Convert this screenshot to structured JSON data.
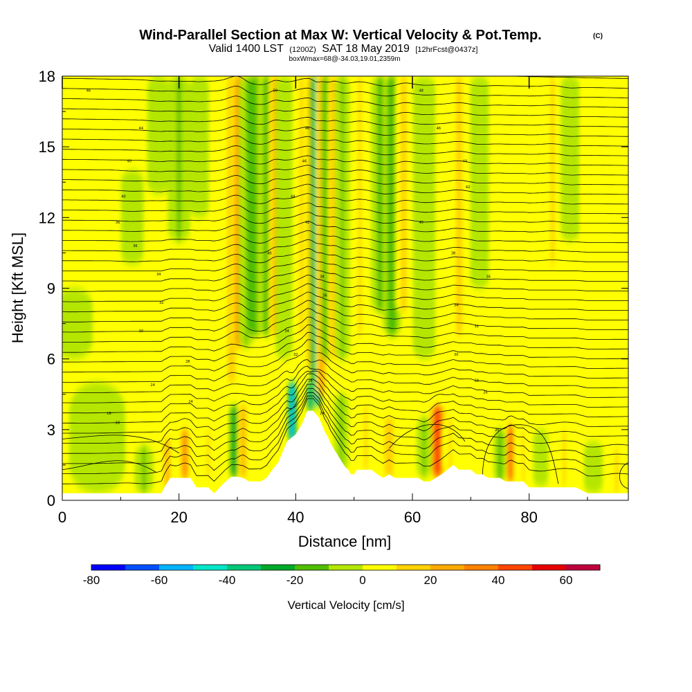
{
  "title": {
    "main": "Wind-Parallel Section at Max W: Vertical Velocity & Pot.Temp.",
    "copyright": "(C)",
    "line2_a": "Valid 1400 LST",
    "line2_b": "(1200Z)",
    "line2_c": "SAT 18 May 2019",
    "line2_d": "[12hrFcst@0437z]",
    "line3": "boxWmax=68@-34.03,19.01,2359m"
  },
  "colors": {
    "background": "#ffff00",
    "terrain": "#ffffff",
    "contour": "#000000",
    "palette": [
      "#0000ff",
      "#0050ff",
      "#00b4ff",
      "#00e6c8",
      "#00c878",
      "#00aa28",
      "#50be00",
      "#b4e600",
      "#ffff00",
      "#ffd200",
      "#ffaa00",
      "#ff8200",
      "#ff4600",
      "#e60000",
      "#be003c"
    ]
  },
  "chart_data": {
    "type": "heatmap",
    "title": "Wind-Parallel Section at Max W: Vertical Velocity & Pot.Temp.",
    "xlabel": "Distance [nm]",
    "ylabel": "Height [Kft MSL]",
    "xlim": [
      0,
      97
    ],
    "ylim": [
      0,
      18
    ],
    "x_ticks": [
      0,
      20,
      40,
      60,
      80
    ],
    "y_ticks": [
      0,
      3,
      6,
      9,
      12,
      15,
      18
    ],
    "colorbar": {
      "label": "Vertical Velocity [cm/s]",
      "min": -80,
      "max": 70,
      "step": 10,
      "tick_values": [
        -80,
        -60,
        -40,
        -20,
        0,
        20,
        40,
        60
      ]
    },
    "shaded_field": "Vertical Velocity [cm/s]",
    "contour_field": "Pot.Temp.",
    "terrain_profile": {
      "x": [
        0,
        10,
        17,
        17.5,
        18.5,
        22,
        23,
        25,
        26,
        27,
        28,
        29,
        30,
        31,
        32,
        33,
        34,
        35,
        36,
        37,
        37.5,
        38,
        38.5,
        39,
        39.5,
        40,
        40.5,
        41,
        41.5,
        42,
        43,
        44,
        44.5,
        45,
        45.5,
        46,
        46.5,
        47,
        47.5,
        48,
        48.5,
        49,
        49.5,
        50,
        50.5,
        51,
        52,
        53,
        54,
        55,
        56,
        57,
        58,
        60,
        61,
        62,
        63,
        64,
        65,
        66,
        67,
        68,
        70,
        71,
        72,
        73,
        74,
        75,
        76,
        77,
        78,
        79,
        80,
        82,
        84,
        86,
        88,
        90,
        92,
        94,
        96,
        97
      ],
      "y": [
        0.3,
        0.3,
        0.3,
        0.55,
        0.95,
        0.95,
        0.55,
        0.55,
        0.3,
        0.55,
        0.8,
        1.0,
        1.0,
        0.95,
        0.8,
        0.8,
        0.8,
        0.95,
        1.3,
        1.6,
        1.9,
        2.2,
        2.5,
        2.6,
        2.7,
        2.8,
        3.0,
        3.2,
        3.5,
        3.8,
        3.8,
        3.5,
        3.2,
        2.9,
        2.7,
        2.4,
        2.2,
        2.0,
        1.8,
        1.6,
        1.4,
        1.3,
        1.1,
        1.1,
        1.3,
        1.3,
        1.3,
        1.3,
        1.1,
        0.95,
        1.1,
        0.95,
        0.95,
        0.95,
        0.95,
        0.8,
        0.8,
        0.95,
        1.1,
        1.3,
        1.5,
        1.3,
        1.3,
        1.1,
        1.1,
        0.95,
        0.95,
        0.95,
        0.8,
        0.8,
        0.8,
        0.8,
        0.55,
        0.55,
        0.55,
        0.55,
        0.55,
        0.3,
        0.3,
        0.3,
        0.3,
        0.3
      ]
    },
    "velocity_features": [
      {
        "x": 29.0,
        "y0": 5.0,
        "y1": 18,
        "w": 0.9,
        "v": 20
      },
      {
        "x": 30.5,
        "y0": 6.5,
        "y1": 18,
        "w": 0.9,
        "v": 45
      },
      {
        "x": 31.5,
        "y0": 6.5,
        "y1": 18,
        "w": 0.8,
        "v": -12
      },
      {
        "x": 33.0,
        "y0": 7.0,
        "y1": 18,
        "w": 1.4,
        "v": -22
      },
      {
        "x": 35.0,
        "y0": 7.0,
        "y1": 18,
        "w": 1.0,
        "v": -15
      },
      {
        "x": 36.5,
        "y0": 7.0,
        "y1": 18,
        "w": 0.7,
        "v": 25
      },
      {
        "x": 38.0,
        "y0": 6.0,
        "y1": 18,
        "w": 0.9,
        "v": -10
      },
      {
        "x": 41.0,
        "y0": 7.0,
        "y1": 18,
        "w": 0.6,
        "v": 15
      },
      {
        "x": 42.7,
        "y0": 5.5,
        "y1": 18,
        "w": 0.6,
        "v": 40
      },
      {
        "x": 43.5,
        "y0": 4.0,
        "y1": 18,
        "w": 0.7,
        "v": -45
      },
      {
        "x": 44.4,
        "y0": 4.5,
        "y1": 18,
        "w": 0.6,
        "v": 30
      },
      {
        "x": 45.4,
        "y0": 6.0,
        "y1": 18,
        "w": 0.7,
        "v": -22
      },
      {
        "x": 46.6,
        "y0": 6.0,
        "y1": 18,
        "w": 0.7,
        "v": 22
      },
      {
        "x": 48.0,
        "y0": 6.0,
        "y1": 18,
        "w": 0.8,
        "v": -12
      },
      {
        "x": 51.0,
        "y0": 7.0,
        "y1": 18,
        "w": 1.0,
        "v": 12
      },
      {
        "x": 54.5,
        "y0": 8.0,
        "y1": 18,
        "w": 1.0,
        "v": -15
      },
      {
        "x": 56.5,
        "y0": 7.0,
        "y1": 18,
        "w": 1.0,
        "v": -20
      },
      {
        "x": 58.5,
        "y0": 8.0,
        "y1": 18,
        "w": 0.9,
        "v": 15
      },
      {
        "x": 62.0,
        "y0": 6.0,
        "y1": 18,
        "w": 1.2,
        "v": -8
      },
      {
        "x": 68.0,
        "y0": 7.0,
        "y1": 18,
        "w": 1.0,
        "v": 15
      },
      {
        "x": 71.5,
        "y0": 9.0,
        "y1": 18,
        "w": 1.0,
        "v": -8
      },
      {
        "x": 84.0,
        "y0": 10.0,
        "y1": 18,
        "w": 1.2,
        "v": 12
      },
      {
        "x": 87.0,
        "y0": 11.0,
        "y1": 18,
        "w": 1.0,
        "v": -10
      },
      {
        "x": 16.5,
        "y0": 13.0,
        "y1": 18,
        "w": 1.2,
        "v": -10
      },
      {
        "x": 20.0,
        "y0": 11.0,
        "y1": 18,
        "w": 1.2,
        "v": -12
      },
      {
        "x": 23.5,
        "y0": 12.0,
        "y1": 18,
        "w": 1.0,
        "v": -10
      },
      {
        "x": 12.0,
        "y0": 10.0,
        "y1": 14,
        "w": 1.2,
        "v": -8
      },
      {
        "x": 25.0,
        "y0": 1.0,
        "y1": 3.0,
        "w": 0.8,
        "v": 12
      },
      {
        "x": 21.0,
        "y0": 0.9,
        "y1": 3.0,
        "w": 0.6,
        "v": 35
      },
      {
        "x": 18.0,
        "y0": 0.5,
        "y1": 2.6,
        "w": 0.6,
        "v": 25
      },
      {
        "x": 14.0,
        "y0": 0.3,
        "y1": 2.3,
        "w": 1.0,
        "v": -12
      },
      {
        "x": 29.5,
        "y0": 1.0,
        "y1": 4.0,
        "w": 0.6,
        "v": -30
      },
      {
        "x": 31.0,
        "y0": 1.0,
        "y1": 4.0,
        "w": 0.6,
        "v": 25
      },
      {
        "x": 39.4,
        "y0": 2.5,
        "y1": 5.0,
        "w": 0.5,
        "v": -60
      },
      {
        "x": 42.5,
        "y0": 3.8,
        "y1": 5.0,
        "w": 0.5,
        "v": -40
      },
      {
        "x": 47.8,
        "y0": 1.3,
        "y1": 4.5,
        "w": 0.8,
        "v": -12
      },
      {
        "x": 52.0,
        "y0": 1.3,
        "y1": 4.0,
        "w": 1.0,
        "v": 12
      },
      {
        "x": 56.0,
        "y0": 1.0,
        "y1": 3.5,
        "w": 1.0,
        "v": 18
      },
      {
        "x": 64.3,
        "y0": 1.0,
        "y1": 4.0,
        "w": 0.9,
        "v": 55
      },
      {
        "x": 62.0,
        "y0": 1.0,
        "y1": 3.5,
        "w": 0.8,
        "v": -12
      },
      {
        "x": 66.5,
        "y0": 1.2,
        "y1": 3.5,
        "w": 0.9,
        "v": 12
      },
      {
        "x": 76.8,
        "y0": 0.8,
        "y1": 3.2,
        "w": 0.5,
        "v": 45
      },
      {
        "x": 75.0,
        "y0": 0.8,
        "y1": 3.0,
        "w": 0.7,
        "v": -15
      },
      {
        "x": 79.0,
        "y0": 0.8,
        "y1": 3.0,
        "w": 0.7,
        "v": 12
      },
      {
        "x": 82.0,
        "y0": 0.6,
        "y1": 3.0,
        "w": 0.8,
        "v": -10
      },
      {
        "x": 86.0,
        "y0": 0.6,
        "y1": 3.0,
        "w": 0.9,
        "v": 12
      },
      {
        "x": 91.0,
        "y0": 0.3,
        "y1": 2.5,
        "w": 1.0,
        "v": -10
      },
      {
        "x": 95.0,
        "y0": 0.3,
        "y1": 2.2,
        "w": 1.0,
        "v": 12
      },
      {
        "x": 6.0,
        "y0": 0.3,
        "y1": 5.0,
        "w": 3.0,
        "v": -5
      },
      {
        "x": 2.0,
        "y0": 6.0,
        "y1": 9.0,
        "w": 2.0,
        "v": -5
      }
    ],
    "contour_labels": [
      {
        "x": 4.5,
        "y": 17.4,
        "text": "46"
      },
      {
        "x": 13.5,
        "y": 15.8,
        "text": "44"
      },
      {
        "x": 11.5,
        "y": 14.4,
        "text": "40"
      },
      {
        "x": 10.5,
        "y": 12.9,
        "text": "40"
      },
      {
        "x": 9.5,
        "y": 11.8,
        "text": "36"
      },
      {
        "x": 12.5,
        "y": 10.8,
        "text": "36"
      },
      {
        "x": 16.5,
        "y": 9.6,
        "text": "34"
      },
      {
        "x": 17.0,
        "y": 8.4,
        "text": "32"
      },
      {
        "x": 13.5,
        "y": 7.2,
        "text": "30"
      },
      {
        "x": 21.5,
        "y": 5.9,
        "text": "28"
      },
      {
        "x": 15.5,
        "y": 4.9,
        "text": "24"
      },
      {
        "x": 22.0,
        "y": 4.2,
        "text": "24"
      },
      {
        "x": 8.0,
        "y": 3.7,
        "text": "18"
      },
      {
        "x": 9.5,
        "y": 3.3,
        "text": "16"
      },
      {
        "x": 36.5,
        "y": 17.4,
        "text": "50"
      },
      {
        "x": 42.0,
        "y": 15.8,
        "text": "48"
      },
      {
        "x": 41.5,
        "y": 14.4,
        "text": "46"
      },
      {
        "x": 39.5,
        "y": 12.9,
        "text": "44"
      },
      {
        "x": 42.0,
        "y": 11.8,
        "text": "42"
      },
      {
        "x": 35.5,
        "y": 10.5,
        "text": "40"
      },
      {
        "x": 44.5,
        "y": 9.5,
        "text": "38"
      },
      {
        "x": 45.0,
        "y": 8.7,
        "text": "36"
      },
      {
        "x": 38.5,
        "y": 7.2,
        "text": "34"
      },
      {
        "x": 40.0,
        "y": 6.2,
        "text": "32"
      },
      {
        "x": 42.5,
        "y": 5.1,
        "text": "28"
      },
      {
        "x": 44.5,
        "y": 3.7,
        "text": "24"
      },
      {
        "x": 61.5,
        "y": 17.4,
        "text": "48"
      },
      {
        "x": 64.5,
        "y": 15.8,
        "text": "46"
      },
      {
        "x": 69.0,
        "y": 14.4,
        "text": "44"
      },
      {
        "x": 69.5,
        "y": 13.3,
        "text": "42"
      },
      {
        "x": 61.5,
        "y": 11.8,
        "text": "40"
      },
      {
        "x": 67.0,
        "y": 10.5,
        "text": "38"
      },
      {
        "x": 73.0,
        "y": 9.5,
        "text": "36"
      },
      {
        "x": 67.5,
        "y": 8.3,
        "text": "34"
      },
      {
        "x": 71.0,
        "y": 7.4,
        "text": "32"
      },
      {
        "x": 67.5,
        "y": 6.2,
        "text": "30"
      },
      {
        "x": 71.0,
        "y": 5.1,
        "text": "28"
      },
      {
        "x": 72.5,
        "y": 4.6,
        "text": "26"
      },
      {
        "x": 74.5,
        "y": 3.0,
        "text": "20"
      }
    ]
  }
}
